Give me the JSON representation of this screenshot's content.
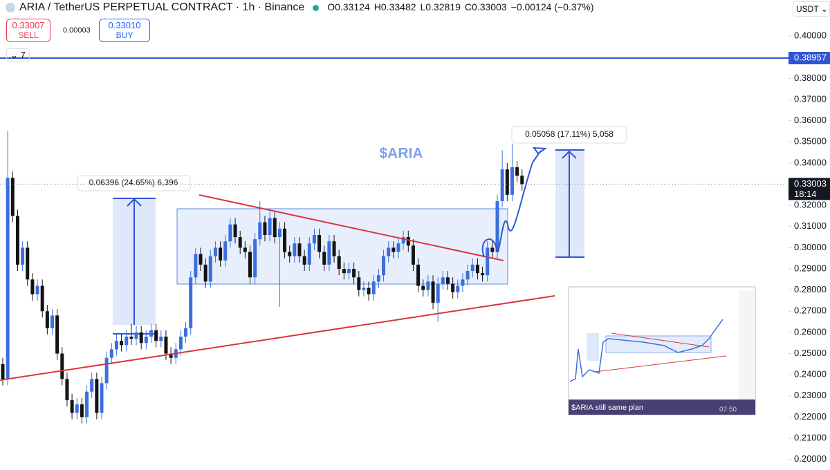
{
  "chart_data": {
    "type": "candlestick",
    "title": "ARIA / TetherUS PERPETUAL CONTRACT · 1h · Binance",
    "header_stats": [
      "O0.33124",
      "H0.33482",
      "L0.32819",
      "C0.33003",
      "−0.00124 (−0.37%)"
    ],
    "sell": {
      "price": "0.33007",
      "label": "SELL"
    },
    "spread": "0.00003",
    "buy": {
      "price": "0.33010",
      "label": "BUY"
    },
    "indicator_count": "7",
    "currency": "USDT",
    "up_color": "#3b6fe0",
    "down_color": "#131313",
    "open": [
      0.245,
      0.238,
      0.333,
      0.315,
      0.292,
      0.3,
      0.285,
      0.278,
      0.282,
      0.27,
      0.262,
      0.268,
      0.25,
      0.238,
      0.228,
      0.222,
      0.226,
      0.22,
      0.232,
      0.238,
      0.222,
      0.236,
      0.248,
      0.252,
      0.256,
      0.254,
      0.258,
      0.257,
      0.26,
      0.255,
      0.258,
      0.261,
      0.256,
      0.258,
      0.25,
      0.248,
      0.252,
      0.258,
      0.262,
      0.286,
      0.297,
      0.292,
      0.284,
      0.296,
      0.3,
      0.294,
      0.303,
      0.311,
      0.305,
      0.3,
      0.298,
      0.286,
      0.304,
      0.312,
      0.306,
      0.314,
      0.305,
      0.309,
      0.298,
      0.296,
      0.302,
      0.296,
      0.292,
      0.302,
      0.306,
      0.298,
      0.292,
      0.303,
      0.296,
      0.29,
      0.288,
      0.29,
      0.286,
      0.28,
      0.281,
      0.278,
      0.284,
      0.287,
      0.296,
      0.3,
      0.298,
      0.302,
      0.305,
      0.301,
      0.292,
      0.282,
      0.28,
      0.284,
      0.274,
      0.283,
      0.286,
      0.283,
      0.279,
      0.282,
      0.285,
      0.289,
      0.292,
      0.288,
      0.287,
      0.3,
      0.298,
      0.322,
      0.337,
      0.325,
      0.338,
      0.334
    ],
    "high": [
      0.248,
      0.355,
      0.336,
      0.318,
      0.303,
      0.303,
      0.288,
      0.285,
      0.285,
      0.273,
      0.271,
      0.271,
      0.253,
      0.241,
      0.231,
      0.229,
      0.229,
      0.235,
      0.241,
      0.241,
      0.239,
      0.251,
      0.255,
      0.259,
      0.259,
      0.261,
      0.264,
      0.263,
      0.263,
      0.261,
      0.264,
      0.264,
      0.261,
      0.261,
      0.253,
      0.255,
      0.261,
      0.265,
      0.289,
      0.3,
      0.3,
      0.295,
      0.299,
      0.303,
      0.303,
      0.306,
      0.314,
      0.314,
      0.308,
      0.303,
      0.301,
      0.307,
      0.322,
      0.315,
      0.317,
      0.317,
      0.312,
      0.312,
      0.301,
      0.305,
      0.305,
      0.299,
      0.305,
      0.309,
      0.309,
      0.301,
      0.306,
      0.306,
      0.299,
      0.293,
      0.293,
      0.293,
      0.289,
      0.284,
      0.284,
      0.287,
      0.29,
      0.299,
      0.303,
      0.303,
      0.305,
      0.308,
      0.308,
      0.304,
      0.295,
      0.285,
      0.287,
      0.287,
      0.286,
      0.289,
      0.289,
      0.286,
      0.285,
      0.288,
      0.292,
      0.295,
      0.295,
      0.291,
      0.303,
      0.303,
      0.325,
      0.346,
      0.34,
      0.349,
      0.341,
      0.337
    ],
    "low": [
      0.235,
      0.235,
      0.312,
      0.289,
      0.289,
      0.282,
      0.275,
      0.275,
      0.267,
      0.259,
      0.259,
      0.247,
      0.235,
      0.225,
      0.219,
      0.219,
      0.217,
      0.217,
      0.229,
      0.219,
      0.219,
      0.233,
      0.245,
      0.249,
      0.251,
      0.251,
      0.254,
      0.254,
      0.252,
      0.252,
      0.255,
      0.253,
      0.253,
      0.247,
      0.245,
      0.245,
      0.249,
      0.255,
      0.259,
      0.283,
      0.289,
      0.281,
      0.281,
      0.293,
      0.291,
      0.291,
      0.3,
      0.302,
      0.297,
      0.295,
      0.283,
      0.283,
      0.301,
      0.303,
      0.303,
      0.302,
      0.272,
      0.295,
      0.293,
      0.293,
      0.293,
      0.289,
      0.289,
      0.299,
      0.295,
      0.289,
      0.289,
      0.293,
      0.287,
      0.285,
      0.285,
      0.283,
      0.277,
      0.277,
      0.275,
      0.275,
      0.281,
      0.284,
      0.293,
      0.295,
      0.295,
      0.299,
      0.298,
      0.289,
      0.279,
      0.277,
      0.277,
      0.271,
      0.265,
      0.28,
      0.28,
      0.276,
      0.276,
      0.279,
      0.282,
      0.286,
      0.285,
      0.284,
      0.284,
      0.295,
      0.295,
      0.319,
      0.322,
      0.322,
      0.331,
      0.327
    ],
    "close": [
      0.238,
      0.333,
      0.315,
      0.292,
      0.3,
      0.285,
      0.278,
      0.282,
      0.27,
      0.262,
      0.268,
      0.25,
      0.238,
      0.228,
      0.222,
      0.226,
      0.22,
      0.232,
      0.238,
      0.222,
      0.236,
      0.248,
      0.252,
      0.256,
      0.254,
      0.258,
      0.257,
      0.26,
      0.255,
      0.258,
      0.261,
      0.256,
      0.258,
      0.25,
      0.248,
      0.252,
      0.258,
      0.262,
      0.286,
      0.297,
      0.292,
      0.284,
      0.296,
      0.3,
      0.294,
      0.303,
      0.311,
      0.305,
      0.3,
      0.298,
      0.286,
      0.304,
      0.312,
      0.306,
      0.314,
      0.305,
      0.309,
      0.298,
      0.296,
      0.302,
      0.296,
      0.292,
      0.302,
      0.306,
      0.298,
      0.292,
      0.303,
      0.296,
      0.29,
      0.288,
      0.29,
      0.286,
      0.28,
      0.281,
      0.278,
      0.284,
      0.287,
      0.296,
      0.3,
      0.298,
      0.302,
      0.305,
      0.301,
      0.292,
      0.282,
      0.28,
      0.284,
      0.274,
      0.283,
      0.286,
      0.283,
      0.279,
      0.282,
      0.285,
      0.289,
      0.292,
      0.288,
      0.287,
      0.3,
      0.298,
      0.322,
      0.337,
      0.325,
      0.338,
      0.334,
      0.33
    ],
    "ylim": [
      0.195,
      0.417
    ],
    "yticks": [
      {
        "value": 0.4,
        "label": "0.40000"
      },
      {
        "value": 0.39,
        "label": "0.39000"
      },
      {
        "value": 0.38,
        "label": "0.38000"
      },
      {
        "value": 0.37,
        "label": "0.37000"
      },
      {
        "value": 0.36,
        "label": "0.36000"
      },
      {
        "value": 0.35,
        "label": "0.35000"
      },
      {
        "value": 0.34,
        "label": "0.34000"
      },
      {
        "value": 0.33,
        "label": "0.33000"
      },
      {
        "value": 0.32,
        "label": "0.32000"
      },
      {
        "value": 0.31,
        "label": "0.31000"
      },
      {
        "value": 0.3,
        "label": "0.30000"
      },
      {
        "value": 0.29,
        "label": "0.29000"
      },
      {
        "value": 0.28,
        "label": "0.28000"
      },
      {
        "value": 0.27,
        "label": "0.27000"
      },
      {
        "value": 0.26,
        "label": "0.26000"
      },
      {
        "value": 0.25,
        "label": "0.25000"
      },
      {
        "value": 0.24,
        "label": "0.24000"
      },
      {
        "value": 0.23,
        "label": "0.23000"
      },
      {
        "value": 0.22,
        "label": "0.22000"
      },
      {
        "value": 0.21,
        "label": "0.21000"
      },
      {
        "value": 0.2,
        "label": "0.20000"
      }
    ],
    "price_line": {
      "value": 0.38957,
      "label": "0.38957",
      "color": "#2f55d4"
    },
    "last_price": {
      "value": 0.33003,
      "label": "0.33003",
      "countdown": "18:14"
    },
    "annotations": {
      "measure_left": "0.06396 (24.65%) 6,396",
      "measure_right": "0.05058 (17.11%) 5,058",
      "symbol": "$ARIA"
    },
    "inset": {
      "caption": "$ARIA still same plan",
      "time": "07:50"
    }
  }
}
